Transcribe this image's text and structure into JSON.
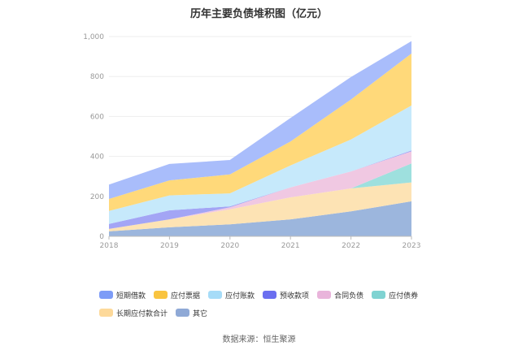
{
  "chart_data": {
    "type": "area",
    "stacked": true,
    "title": "历年主要负债堆积图（亿元）",
    "x": [
      "2018",
      "2019",
      "2020",
      "2021",
      "2022",
      "2023"
    ],
    "y_ticks": [
      "0",
      "200",
      "400",
      "600",
      "800",
      "1,000"
    ],
    "ylim": [
      0,
      1000
    ],
    "series": [
      {
        "name": "其它",
        "color": "#9cb6dd",
        "values": [
          25,
          45,
          60,
          85,
          125,
          175
        ]
      },
      {
        "name": "长期应付款合计",
        "color": "#fde3b4",
        "values": [
          12,
          40,
          75,
          110,
          115,
          95
        ]
      },
      {
        "name": "应付债券",
        "color": "#9ee0de",
        "values": [
          0,
          0,
          0,
          0,
          0,
          95
        ]
      },
      {
        "name": "合同负债",
        "color": "#f0c8e2",
        "values": [
          0,
          0,
          10,
          50,
          85,
          60
        ]
      },
      {
        "name": "预收款项",
        "color": "#a3a5f5",
        "values": [
          25,
          45,
          5,
          0,
          0,
          5
        ]
      },
      {
        "name": "应付账款",
        "color": "#c6e9fb",
        "values": [
          65,
          75,
          65,
          110,
          160,
          225
        ]
      },
      {
        "name": "应付票据",
        "color": "#ffd97a",
        "values": [
          60,
          75,
          95,
          120,
          200,
          260
        ]
      },
      {
        "name": "短期借款",
        "color": "#a9bdfb",
        "values": [
          70,
          80,
          70,
          115,
          110,
          60
        ]
      }
    ]
  },
  "legend": [
    {
      "label": "短期借款",
      "color": "#7d9cf7"
    },
    {
      "label": "应付票据",
      "color": "#f9c440"
    },
    {
      "label": "应付账款",
      "color": "#a6dcf8"
    },
    {
      "label": "预收款项",
      "color": "#6b6ff0"
    },
    {
      "label": "合同负债",
      "color": "#e9b4db"
    },
    {
      "label": "应付债券",
      "color": "#7fd3d2"
    },
    {
      "label": "长期应付款合计",
      "color": "#fdd99a"
    },
    {
      "label": "其它",
      "color": "#8fa9d6"
    }
  ],
  "source": "数据来源：恒生聚源"
}
